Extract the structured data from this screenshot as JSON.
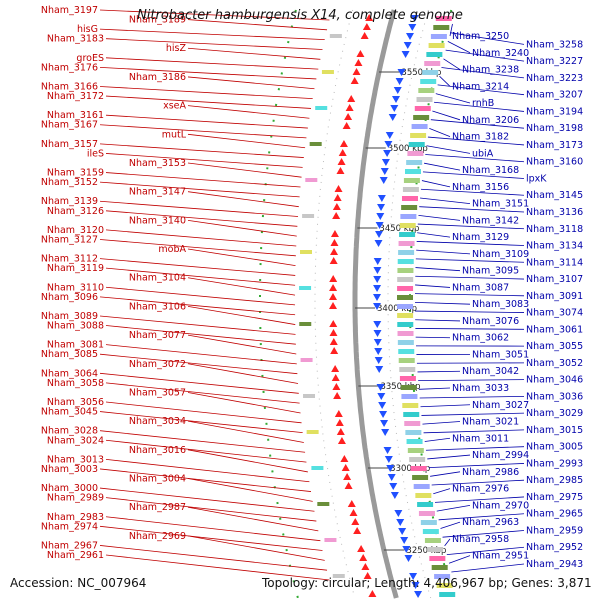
{
  "title": "Nitrobacter hamburgensis X14, complete genome",
  "footer": {
    "accession": "Accession: NC_007964",
    "topology": "Topology: circular; Length: 4,406,967 bp; Genes: 3,871"
  },
  "colors": {
    "left_label": "#c00000",
    "right_label": "#0000aa",
    "left_feature": "#ff2020",
    "right_feature": "#2050ff",
    "backbone": "#9a9a9a",
    "tick": "#1a8a1a"
  },
  "scale_labels": [
    "3550 kbp",
    "3500 kbp",
    "3450 kbp",
    "3400 kbp",
    "3350 kbp",
    "3300 kbp",
    "3250 kbp"
  ],
  "left_labels": [
    "Nham_3197",
    "Nham_3189",
    "hisG",
    "Nham_3183",
    "hisZ",
    "groES",
    "Nham_3176",
    "Nham_3186",
    "Nham_3166",
    "Nham_3172",
    "xseA",
    "Nham_3161",
    "Nham_3167",
    "mutL",
    "Nham_3157",
    "ileS",
    "Nham_3153",
    "Nham_3159",
    "Nham_3152",
    "Nham_3147",
    "Nham_3139",
    "Nham_3126",
    "Nham_3140",
    "Nham_3120",
    "Nham_3127",
    "mobA",
    "Nham_3112",
    "Nham_3119",
    "Nham_3104",
    "Nham_3110",
    "Nham_3096",
    "Nham_3106",
    "Nham_3089",
    "Nham_3088",
    "Nham_3077",
    "Nham_3081",
    "Nham_3085",
    "Nham_3072",
    "Nham_3064",
    "Nham_3058",
    "Nham_3057",
    "Nham_3056",
    "Nham_3045",
    "Nham_3034",
    "Nham_3028",
    "Nham_3024",
    "Nham_3016",
    "Nham_3013",
    "Nham_3003",
    "Nham_3004",
    "Nham_3000",
    "Nham_2989",
    "Nham_2987",
    "Nham_2983",
    "Nham_2974",
    "Nham_2969",
    "Nham_2967",
    "Nham_2961"
  ],
  "right_labels": [
    "Nham_3250",
    "Nham_3258",
    "Nham_3240",
    "Nham_3227",
    "Nham_3238",
    "Nham_3223",
    "Nham_3214",
    "Nham_3207",
    "rnhB",
    "Nham_3194",
    "Nham_3206",
    "Nham_3198",
    "Nham_3182",
    "Nham_3173",
    "ubiA",
    "Nham_3160",
    "Nham_3168",
    "lpxK",
    "Nham_3156",
    "Nham_3145",
    "Nham_3151",
    "Nham_3136",
    "Nham_3142",
    "Nham_3118",
    "Nham_3129",
    "Nham_3134",
    "Nham_3109",
    "Nham_3114",
    "Nham_3095",
    "Nham_3107",
    "Nham_3087",
    "Nham_3091",
    "Nham_3083",
    "Nham_3074",
    "Nham_3076",
    "Nham_3061",
    "Nham_3062",
    "Nham_3055",
    "Nham_3051",
    "Nham_3052",
    "Nham_3042",
    "Nham_3046",
    "Nham_3033",
    "Nham_3036",
    "Nham_3027",
    "Nham_3029",
    "Nham_3021",
    "Nham_3015",
    "Nham_3011",
    "Nham_3005",
    "Nham_2994",
    "Nham_2993",
    "Nham_2986",
    "Nham_2985",
    "Nham_2976",
    "Nham_2975",
    "Nham_2970",
    "Nham_2965",
    "Nham_2963",
    "Nham_2959",
    "Nham_2958",
    "Nham_2952",
    "Nham_2951",
    "Nham_2943"
  ]
}
